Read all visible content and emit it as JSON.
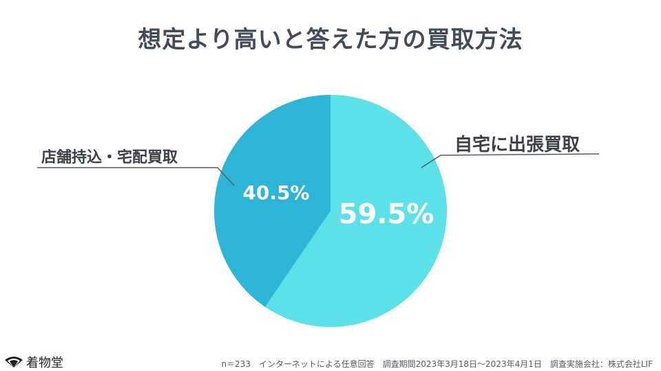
{
  "chart_data": {
    "type": "pie",
    "title": "想定より高いと答えた方の買取方法",
    "slices": [
      {
        "label": "自宅に出張買取",
        "value": 59.5,
        "display": "59.5%",
        "color": "#5de1e8"
      },
      {
        "label": "店舗持込・宅配買取",
        "value": 40.5,
        "display": "40.5%",
        "color": "#2db4d6"
      }
    ]
  },
  "footer": {
    "note": "n＝233　インターネットによる任意回答　調査期間2023年3月18日〜2023年4月1日　調査実施会社：株式会社LIF"
  },
  "brand": {
    "name": "着物堂"
  },
  "colors": {
    "callout_line": "#555a66",
    "title": "#434a5e"
  }
}
